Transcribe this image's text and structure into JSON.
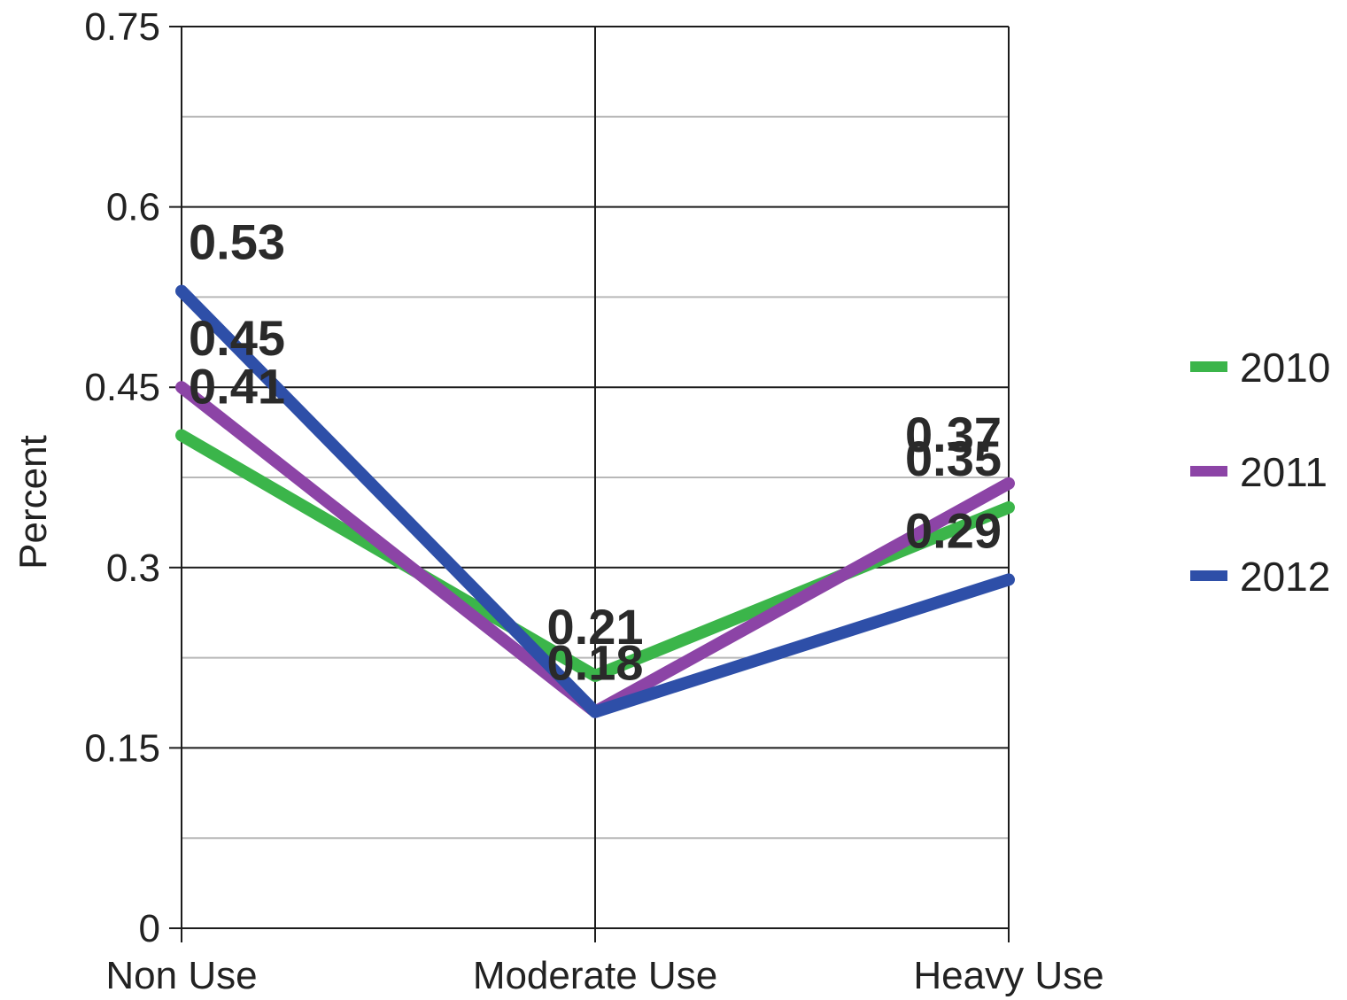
{
  "chart_data": {
    "type": "line",
    "categories": [
      "Non Use",
      "Moderate Use",
      "Heavy Use"
    ],
    "ylabel": "Percent",
    "xlabel": "",
    "ylim": [
      0,
      0.75
    ],
    "yticks": [
      "0",
      "0.15",
      "0.3",
      "0.45",
      "0.6",
      "0.75"
    ],
    "grid": true,
    "legend_position": "right",
    "series": [
      {
        "name": "2010",
        "color": "#3bb54a",
        "values": [
          0.41,
          0.21,
          0.35
        ],
        "labels": [
          "0.41",
          "0.21",
          "0.35"
        ]
      },
      {
        "name": "2011",
        "color": "#8c44a6",
        "values": [
          0.45,
          0.18,
          0.37
        ],
        "labels": [
          "0.45",
          "",
          "0.37"
        ]
      },
      {
        "name": "2012",
        "color": "#2e4fa8",
        "values": [
          0.53,
          0.18,
          0.29
        ],
        "labels": [
          "0.53",
          "0.18",
          "0.29"
        ]
      }
    ]
  }
}
